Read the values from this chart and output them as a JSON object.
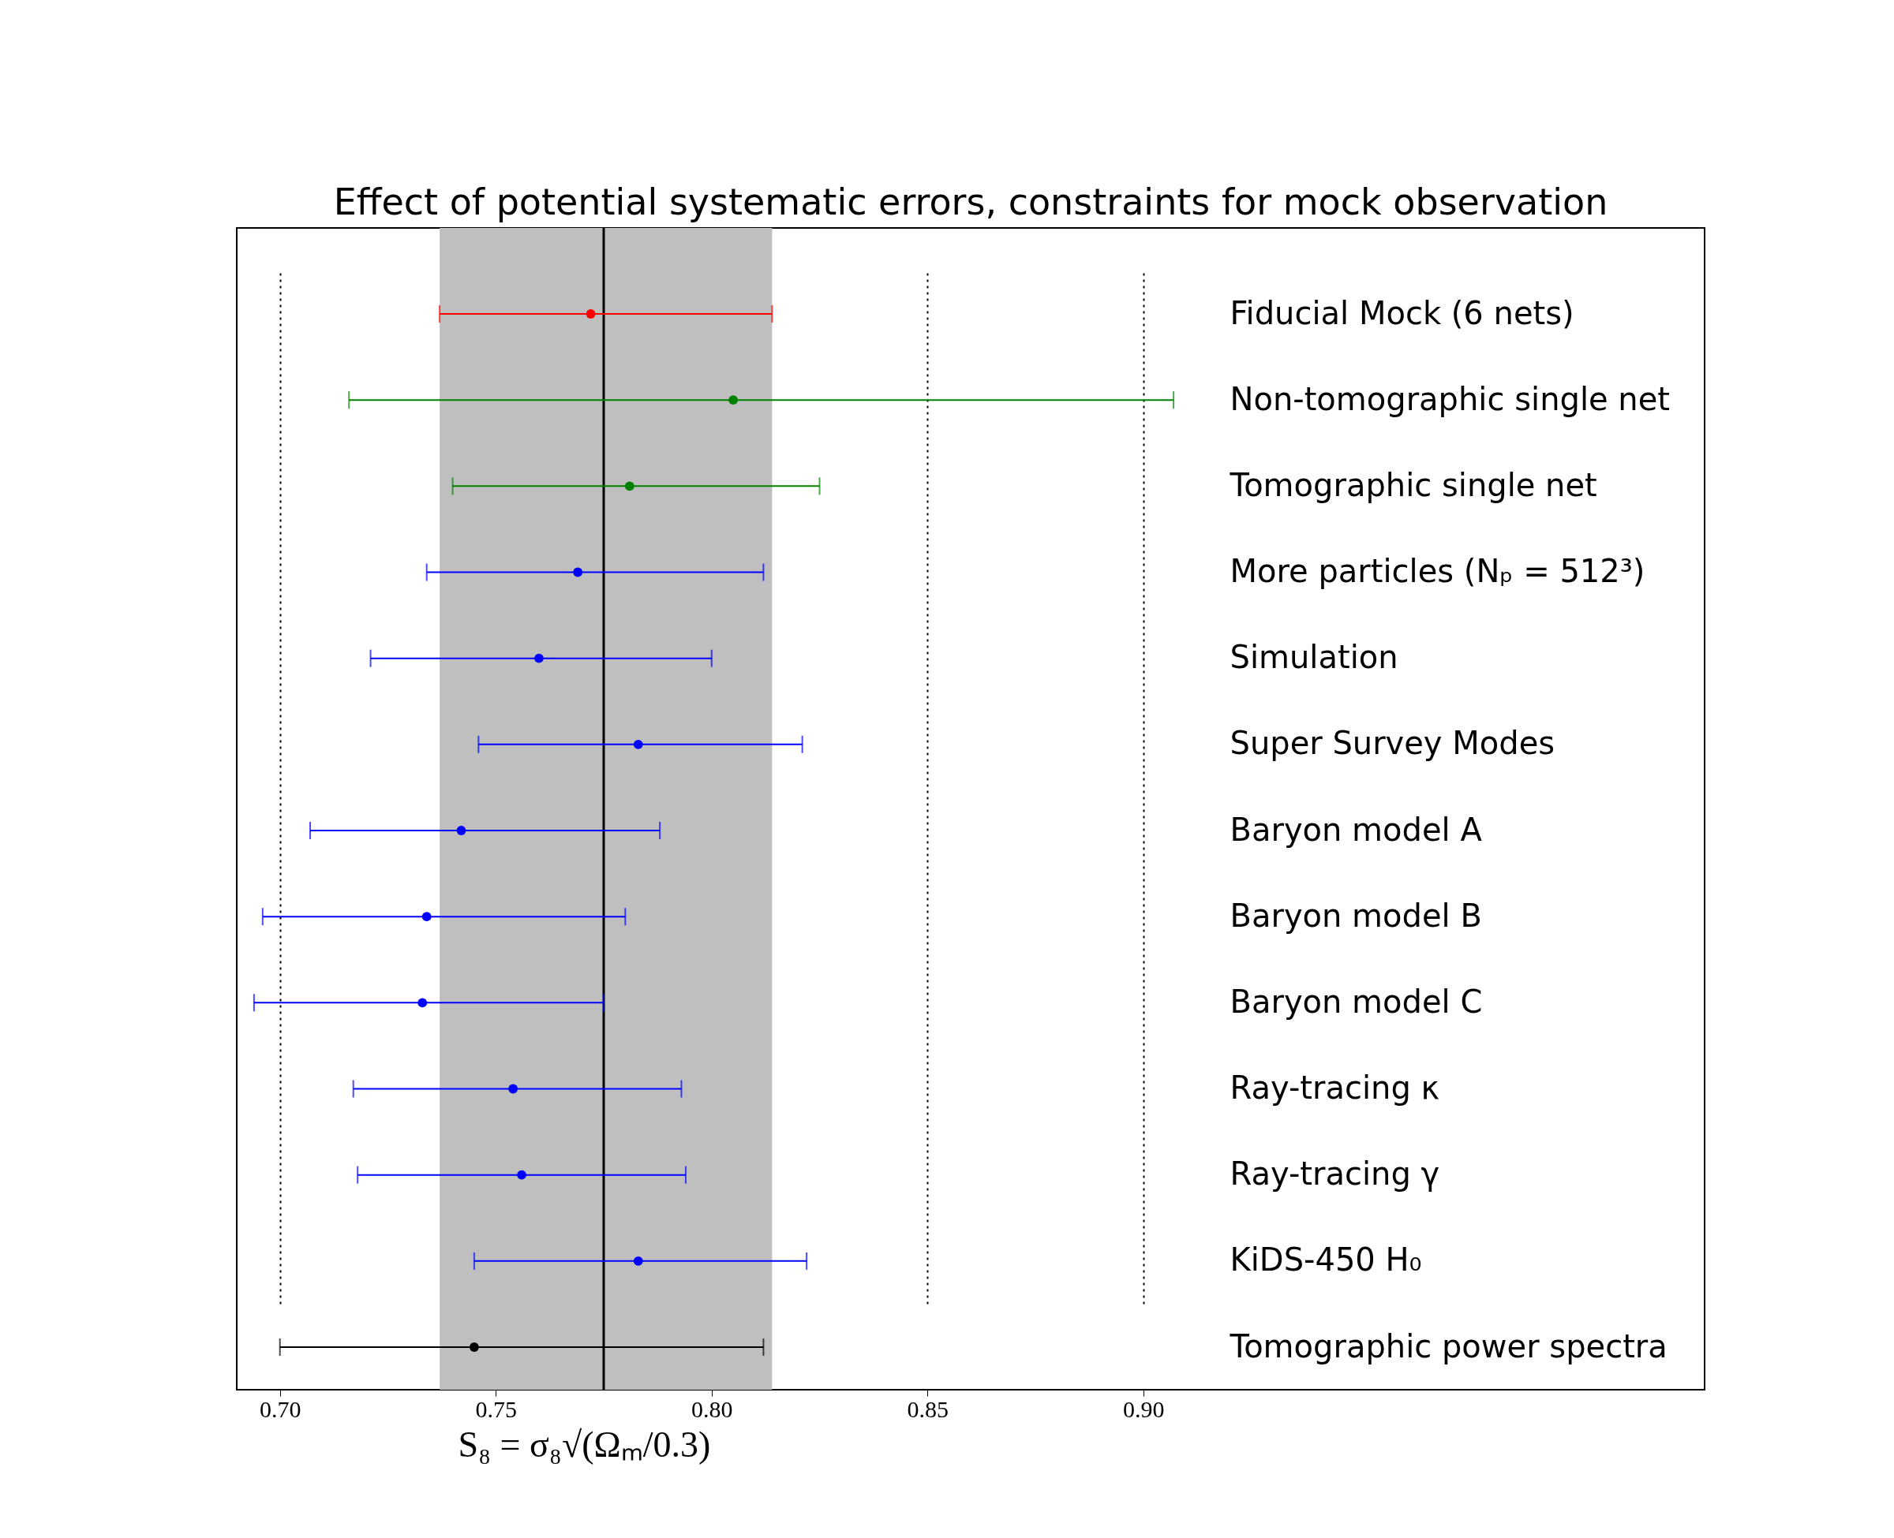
{
  "chart_data": {
    "type": "scatter",
    "orientation": "horizontal",
    "title": "Effect of potential systematic errors, constraints for mock observation",
    "xlabel": "S₈ = σ₈√(Ωₘ/0.3)",
    "categories": [
      "Fiducial Mock (6 nets)",
      "Non-tomographic single net",
      "Tomographic single net",
      "More particles (Nₚ = 512³)",
      "Simulation",
      "Super Survey Modes",
      "Baryon model A",
      "Baryon model B",
      "Baryon model C",
      "Ray-tracing κ",
      "Ray-tracing γ",
      "KiDS-450 H₀",
      "Tomographic power spectra"
    ],
    "values": [
      0.772,
      0.805,
      0.781,
      0.769,
      0.76,
      0.783,
      0.742,
      0.734,
      0.733,
      0.754,
      0.756,
      0.783,
      0.745
    ],
    "errors": [
      [
        0.737,
        0.814
      ],
      [
        0.716,
        0.907
      ],
      [
        0.74,
        0.825
      ],
      [
        0.734,
        0.812
      ],
      [
        0.721,
        0.8
      ],
      [
        0.746,
        0.821
      ],
      [
        0.707,
        0.788
      ],
      [
        0.696,
        0.78
      ],
      [
        0.694,
        0.775
      ],
      [
        0.717,
        0.793
      ],
      [
        0.718,
        0.794
      ],
      [
        0.745,
        0.822
      ],
      [
        0.7,
        0.812
      ]
    ],
    "colors": [
      "#ff0000",
      "#008000",
      "#008000",
      "#0000ff",
      "#0000ff",
      "#0000ff",
      "#0000ff",
      "#0000ff",
      "#0000ff",
      "#0000ff",
      "#0000ff",
      "#0000ff",
      "#000000"
    ],
    "xlim": [
      0.69,
      1.03
    ],
    "xticks": [
      {
        "value": 0.7,
        "label": "0.70"
      },
      {
        "value": 0.75,
        "label": "0.75"
      },
      {
        "value": 0.8,
        "label": "0.80"
      },
      {
        "value": 0.85,
        "label": "0.85"
      },
      {
        "value": 0.9,
        "label": "0.90"
      }
    ],
    "grid": "x",
    "marker": "circle",
    "ref_lines": [
      {
        "axis": "x",
        "value": 0.775,
        "color": "#000000"
      }
    ],
    "bands": [
      {
        "axis": "x",
        "from": 0.737,
        "to": 0.814,
        "color": "#bfbfbf"
      }
    ]
  }
}
